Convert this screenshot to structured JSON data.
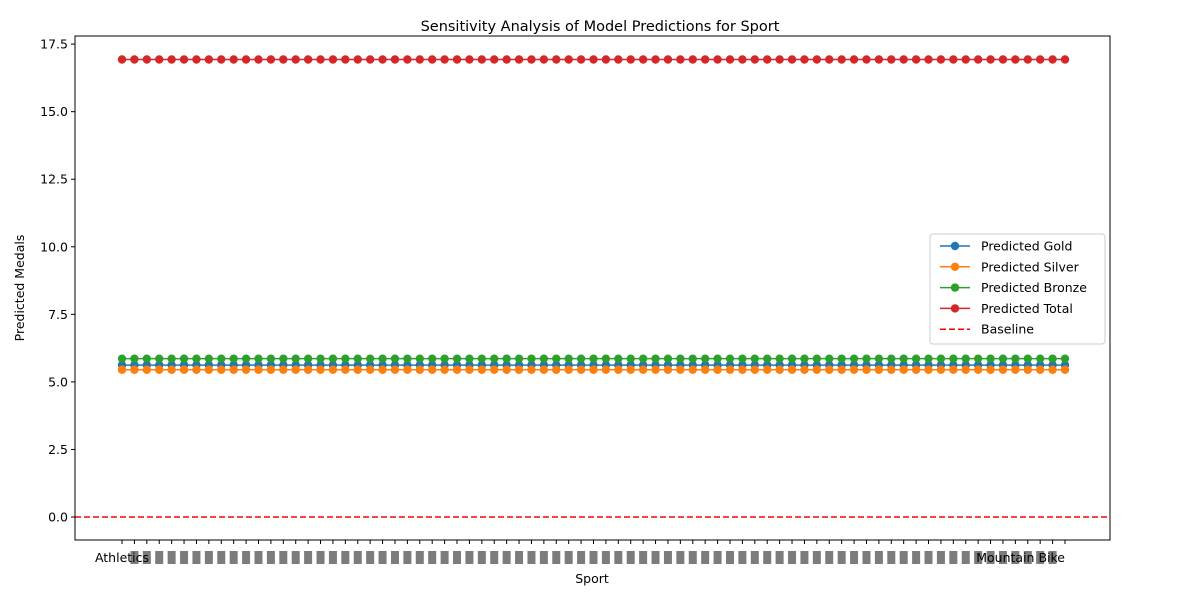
{
  "chart_data": {
    "type": "line",
    "title": "Sensitivity Analysis of Model Predictions for Sport",
    "xlabel": "Sport",
    "ylabel": "Predicted Medals",
    "ylim": [
      -0.85,
      17.8
    ],
    "yticks": [
      0.0,
      2.5,
      5.0,
      7.5,
      10.0,
      12.5,
      15.0,
      17.5
    ],
    "ytick_labels": [
      "0.0",
      "2.5",
      "5.0",
      "7.5",
      "10.0",
      "12.5",
      "15.0",
      "17.5"
    ],
    "n_categories": 77,
    "first_category": "Athletics",
    "last_category": "Mountain Bike",
    "x_tick_labels_legible": false,
    "grid": false,
    "legend_position": "center-right",
    "series": [
      {
        "name": "Predicted Gold",
        "value": 5.62,
        "color": "#1f77b4",
        "marker": "circle"
      },
      {
        "name": "Predicted Silver",
        "value": 5.45,
        "color": "#ff7f0e",
        "marker": "circle"
      },
      {
        "name": "Predicted Bronze",
        "value": 5.86,
        "color": "#2ca02c",
        "marker": "circle"
      },
      {
        "name": "Predicted Total",
        "value": 16.93,
        "color": "#d62728",
        "marker": "circle"
      }
    ],
    "baseline": {
      "name": "Baseline",
      "value": 0.0,
      "color": "#ff0000",
      "style": "dashed"
    }
  }
}
